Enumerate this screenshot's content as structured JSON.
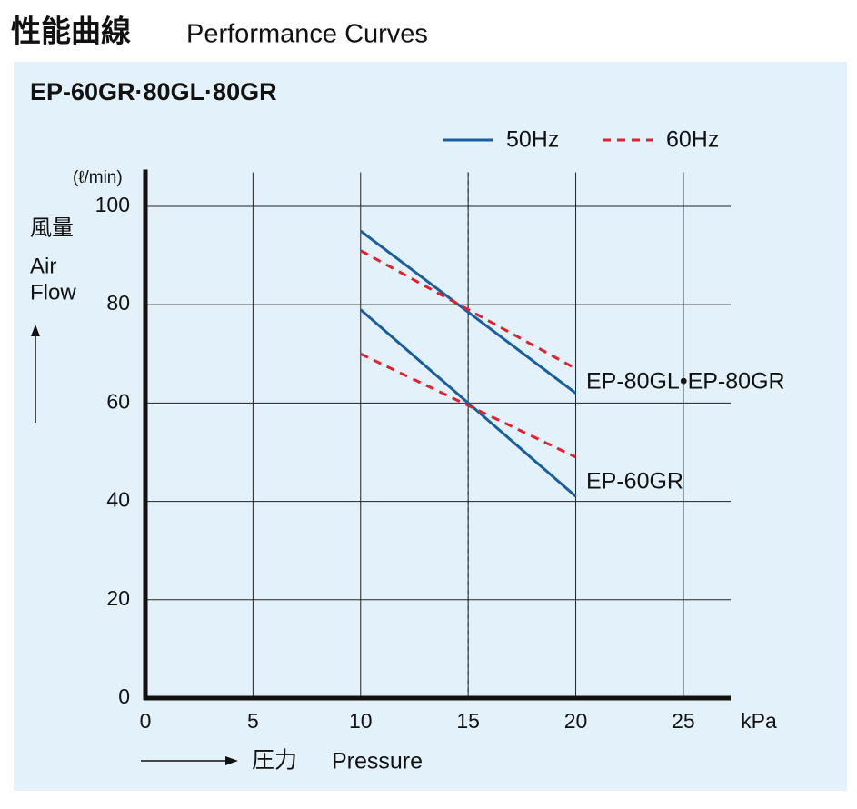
{
  "chart_data": {
    "type": "line",
    "title": "性能曲線",
    "title_en": "Performance Curves",
    "subtitle": "EP-60GR·80GL·80GR",
    "y_unit": "(ℓ/min)",
    "y_label": [
      "風量",
      "Air",
      "Flow"
    ],
    "x_unit": "kPa",
    "x_label": [
      "圧力",
      "Pressure"
    ],
    "legend": [
      {
        "name": "50Hz",
        "color": "#1b5e9e",
        "dashed": false
      },
      {
        "name": "60Hz",
        "color": "#e3202d",
        "dashed": true
      }
    ],
    "x": [
      10,
      20
    ],
    "groups": [
      {
        "label": "EP-80GL•EP-80GR",
        "lines": [
          {
            "legend": 0,
            "values": [
              95,
              62
            ]
          },
          {
            "legend": 1,
            "values": [
              91,
              67
            ]
          }
        ]
      },
      {
        "label": "EP-60GR",
        "lines": [
          {
            "legend": 0,
            "values": [
              79,
              41
            ]
          },
          {
            "legend": 1,
            "values": [
              70,
              49
            ]
          }
        ]
      }
    ],
    "vlines": [
      15
    ],
    "xlim": [
      0,
      27.2
    ],
    "xticks": [
      0,
      5,
      10,
      15,
      20,
      25
    ],
    "ylim": [
      0,
      106
    ],
    "yticks": [
      0,
      20,
      40,
      60,
      80,
      100
    ],
    "grid": true
  }
}
